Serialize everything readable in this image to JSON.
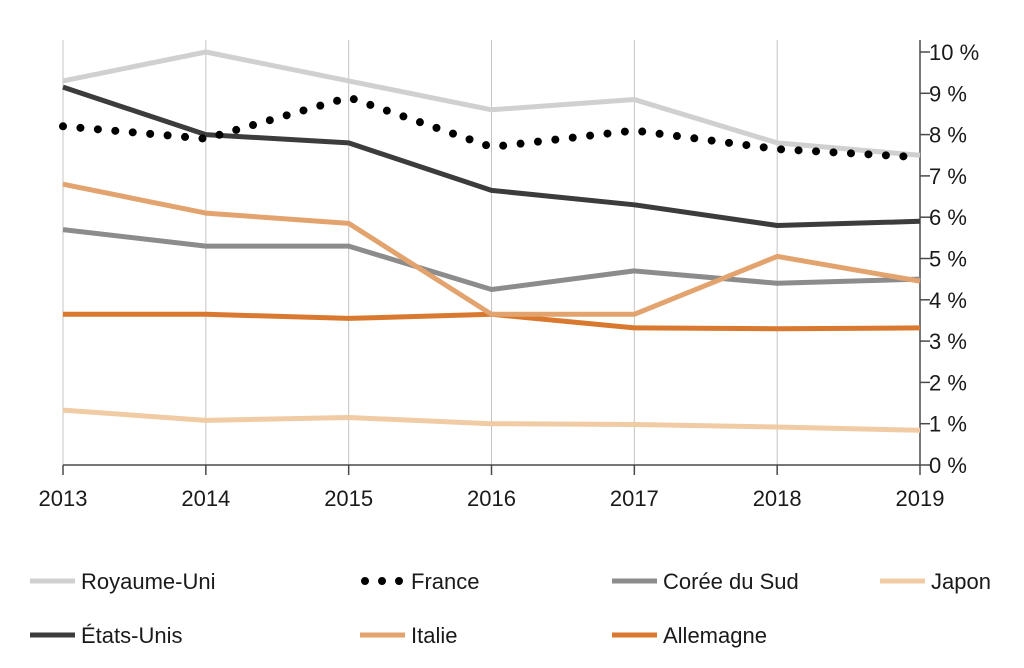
{
  "chart_data": {
    "type": "line",
    "title": "",
    "xlabel": "",
    "ylabel": "",
    "x": [
      2013,
      2014,
      2015,
      2016,
      2017,
      2018,
      2019
    ],
    "x_tick_labels": [
      "2013",
      "2014",
      "2015",
      "2016",
      "2017",
      "2018",
      "2019"
    ],
    "ylim": [
      0,
      10
    ],
    "y_ticks": [
      0,
      1,
      2,
      3,
      4,
      5,
      6,
      7,
      8,
      9,
      10
    ],
    "y_tick_labels": [
      "0 %",
      "1 %",
      "2 %",
      "3 %",
      "4 %",
      "5 %",
      "6 %",
      "7 %",
      "8 %",
      "9 %",
      "10 %"
    ],
    "y_axis_side": "right",
    "grid": "vertical",
    "legend_position": "bottom",
    "series": [
      {
        "name": "Royaume-Uni",
        "color": "#d0d0d0",
        "style": "solid",
        "values": [
          9.3,
          10.0,
          9.3,
          8.6,
          8.85,
          7.8,
          7.5
        ]
      },
      {
        "name": "France",
        "color": "#000000",
        "style": "dotted",
        "values": [
          8.2,
          7.9,
          8.9,
          7.7,
          8.1,
          7.65,
          7.45
        ]
      },
      {
        "name": "Corée du Sud",
        "color": "#8c8c8c",
        "style": "solid",
        "values": [
          5.7,
          5.3,
          5.3,
          4.25,
          4.7,
          4.4,
          4.5
        ]
      },
      {
        "name": "Japon",
        "color": "#f0cba4",
        "style": "solid",
        "values": [
          1.33,
          1.08,
          1.15,
          1.0,
          0.98,
          0.92,
          0.84
        ]
      },
      {
        "name": "États-Unis",
        "color": "#3c3c3c",
        "style": "solid",
        "values": [
          9.15,
          8.0,
          7.8,
          6.65,
          6.3,
          5.8,
          5.9
        ]
      },
      {
        "name": "Italie",
        "color": "#e3a36e",
        "style": "solid",
        "values": [
          6.8,
          6.1,
          5.85,
          3.65,
          3.65,
          5.05,
          4.45
        ]
      },
      {
        "name": "Allemagne",
        "color": "#d9782f",
        "style": "solid",
        "values": [
          3.65,
          3.65,
          3.55,
          3.65,
          3.32,
          3.3,
          3.32
        ]
      }
    ]
  }
}
